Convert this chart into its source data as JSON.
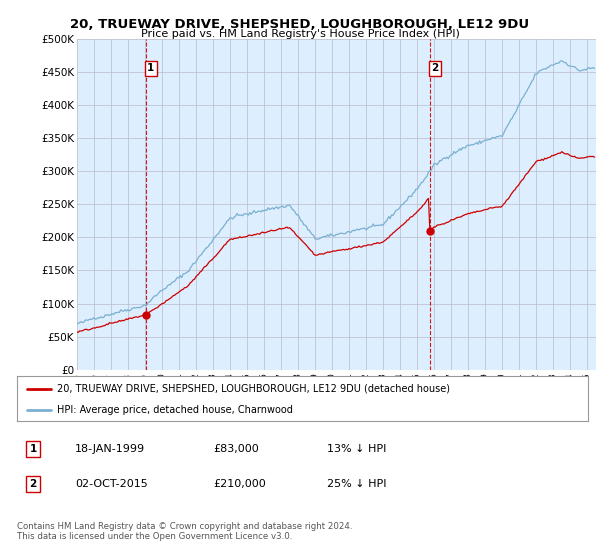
{
  "title": "20, TRUEWAY DRIVE, SHEPSHED, LOUGHBOROUGH, LE12 9DU",
  "subtitle": "Price paid vs. HM Land Registry's House Price Index (HPI)",
  "xlim_start": 1995.0,
  "xlim_end": 2025.5,
  "ylim": [
    0,
    500000
  ],
  "yticks": [
    0,
    50000,
    100000,
    150000,
    200000,
    250000,
    300000,
    350000,
    400000,
    450000,
    500000
  ],
  "ytick_labels": [
    "£0",
    "£50K",
    "£100K",
    "£150K",
    "£200K",
    "£250K",
    "£300K",
    "£350K",
    "£400K",
    "£450K",
    "£500K"
  ],
  "xtick_years": [
    1995,
    1996,
    1997,
    1998,
    1999,
    2000,
    2001,
    2002,
    2003,
    2004,
    2005,
    2006,
    2007,
    2008,
    2009,
    2010,
    2011,
    2012,
    2013,
    2014,
    2015,
    2016,
    2017,
    2018,
    2019,
    2020,
    2021,
    2022,
    2023,
    2024,
    2025
  ],
  "sale1_x": 1999.04,
  "sale1_y": 83000,
  "sale2_x": 2015.75,
  "sale2_y": 210000,
  "hpi_color": "#7ab0d0",
  "sale_color": "#cc0000",
  "vline_color": "#cc0000",
  "chart_bg_color": "#ddeeff",
  "background_color": "#ffffff",
  "legend_label1": "20, TRUEWAY DRIVE, SHEPSHED, LOUGHBOROUGH, LE12 9DU (detached house)",
  "legend_label2": "HPI: Average price, detached house, Charnwood",
  "table_row1": [
    "1",
    "18-JAN-1999",
    "£83,000",
    "13% ↓ HPI"
  ],
  "table_row2": [
    "2",
    "02-OCT-2015",
    "£210,000",
    "25% ↓ HPI"
  ],
  "footnote": "Contains HM Land Registry data © Crown copyright and database right 2024.\nThis data is licensed under the Open Government Licence v3.0."
}
